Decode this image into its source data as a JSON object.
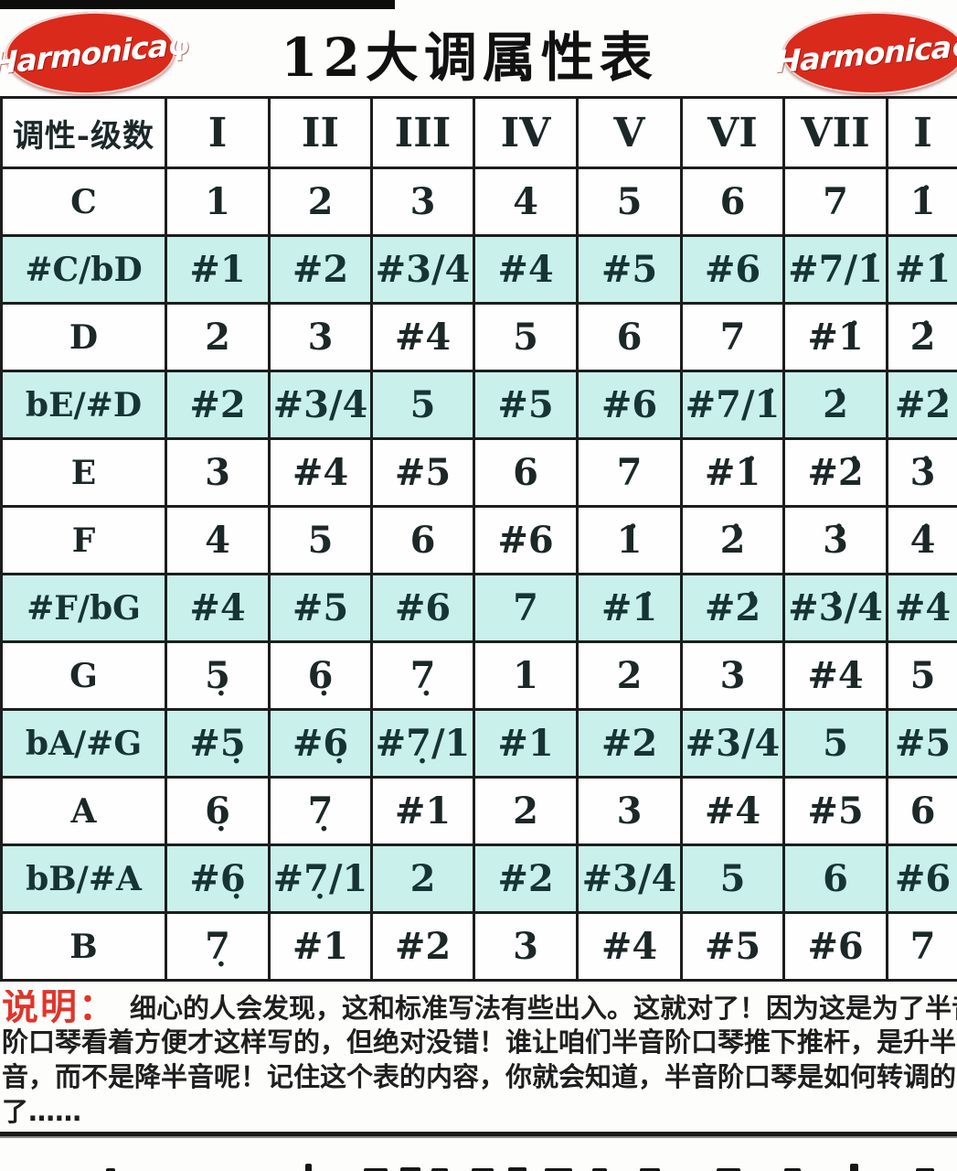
{
  "page": {
    "title": "12大调属性表",
    "logo_text": "Harmonica",
    "logo_glyph": "φ"
  },
  "colors": {
    "logo_red": "#d92a1c",
    "row_highlight": "#c9f0eb",
    "label_red": "#e0352a",
    "table_border": "#1d1d1d"
  },
  "table": {
    "corner_header": "调性-级数",
    "columns": [
      "I",
      "II",
      "III",
      "IV",
      "V",
      "VI",
      "VII",
      "I"
    ],
    "rows": [
      {
        "key": "C",
        "accidental": false,
        "cells": [
          "1",
          "2",
          "3",
          "4",
          "5",
          "6",
          "7",
          "1̇"
        ]
      },
      {
        "key": "#C/bD",
        "accidental": true,
        "cells": [
          "#1",
          "#2",
          "#3/4",
          "#4",
          "#5",
          "#6",
          "#7/1̇",
          "#1̇"
        ]
      },
      {
        "key": "D",
        "accidental": false,
        "cells": [
          "2",
          "3",
          "#4",
          "5",
          "6",
          "7",
          "#1̇",
          "2̇"
        ]
      },
      {
        "key": "bE/#D",
        "accidental": true,
        "cells": [
          "#2",
          "#3/4",
          "5",
          "#5",
          "#6",
          "#7/1̇",
          "2̇",
          "#2̇"
        ]
      },
      {
        "key": "E",
        "accidental": false,
        "cells": [
          "3",
          "#4",
          "#5",
          "6",
          "7",
          "#1̇",
          "#2̇",
          "3̇"
        ]
      },
      {
        "key": "F",
        "accidental": false,
        "cells": [
          "4",
          "5",
          "6",
          "#6",
          "1̇",
          "2̇",
          "3̇",
          "4̇"
        ]
      },
      {
        "key": "#F/bG",
        "accidental": true,
        "cells": [
          "#4",
          "#5",
          "#6",
          "7",
          "#1̇",
          "#2̇",
          "#3̇/4̇",
          "#4̇"
        ]
      },
      {
        "key": "G",
        "accidental": false,
        "cells": [
          "5̣",
          "6̣",
          "7̣",
          "1",
          "2",
          "3",
          "#4",
          "5"
        ]
      },
      {
        "key": "bA/#G",
        "accidental": true,
        "cells": [
          "#5̣",
          "#6̣",
          "#7̣/1",
          "#1",
          "#2",
          "#3/4",
          "5",
          "#5"
        ]
      },
      {
        "key": "A",
        "accidental": false,
        "cells": [
          "6̣",
          "7̣",
          "#1",
          "2",
          "3",
          "#4",
          "#5",
          "6"
        ]
      },
      {
        "key": "bB/#A",
        "accidental": true,
        "cells": [
          "#6̣",
          "#7̣/1",
          "2",
          "#2",
          "#3/4",
          "5",
          "6",
          "#6"
        ]
      },
      {
        "key": "B",
        "accidental": false,
        "cells": [
          "7̣",
          "#1",
          "#2",
          "3",
          "#4",
          "#5",
          "#6",
          "7"
        ]
      }
    ]
  },
  "footer": {
    "label": "说明：",
    "lines": [
      "细心的人会发现，这和标准写法有些出入。这就对了！因为这是为了半音",
      "阶口琴看着方便才这样写的，但绝对没错！谁让咱们半音阶口琴推下推杆，是升半",
      "音，而不是降半音呢！记住这个表的内容，你就会知道，半音阶口琴是如何转调的",
      "了……"
    ]
  }
}
